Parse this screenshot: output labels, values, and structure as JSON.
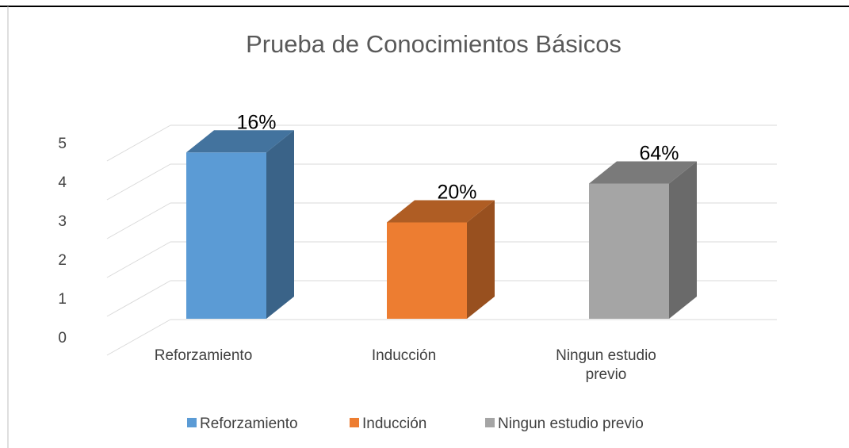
{
  "chart_data": {
    "type": "bar3d",
    "title": "Prueba de Conocimientos Básicos",
    "categories": [
      "Reforzamiento",
      "Inducción",
      "Ningun estudio previo"
    ],
    "values": [
      4.3,
      2.5,
      3.5
    ],
    "colors": [
      "#5b9bd5",
      "#ed7d31",
      "#a5a5a5"
    ],
    "annotations": [
      "16%",
      "20%",
      "64%"
    ],
    "ylim": [
      0,
      5
    ],
    "yticks": [
      0,
      1,
      2,
      3,
      4,
      5
    ],
    "grid": true,
    "legend": "bottom"
  }
}
